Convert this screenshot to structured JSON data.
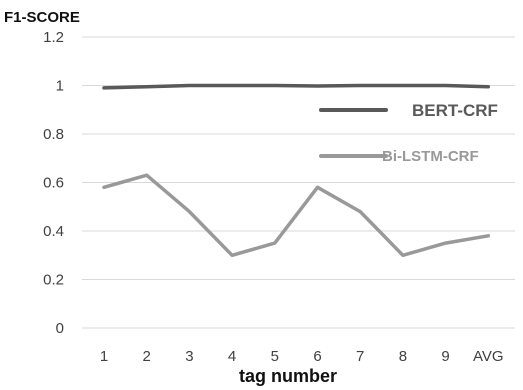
{
  "chart_data": {
    "type": "line",
    "ylabel": "F1-SCORE",
    "xlabel": "tag number",
    "categories": [
      "1",
      "2",
      "3",
      "4",
      "5",
      "6",
      "7",
      "8",
      "9",
      "AVG"
    ],
    "y_ticks": [
      "0",
      "0.2",
      "0.4",
      "0.6",
      "0.8",
      "1",
      "1.2"
    ],
    "ylim": [
      0,
      1.2
    ],
    "grid": "horizontal",
    "legend_placement": "right",
    "series": [
      {
        "name": "BERT-CRF",
        "color": "#595959",
        "values": [
          0.99,
          0.995,
          1.0,
          1.0,
          1.0,
          0.998,
          1.0,
          1.0,
          1.0,
          0.995
        ]
      },
      {
        "name": "Bi-LSTM-CRF",
        "color": "#999999",
        "values": [
          0.58,
          0.63,
          0.48,
          0.3,
          0.35,
          0.58,
          0.48,
          0.3,
          0.35,
          0.38
        ]
      }
    ]
  }
}
